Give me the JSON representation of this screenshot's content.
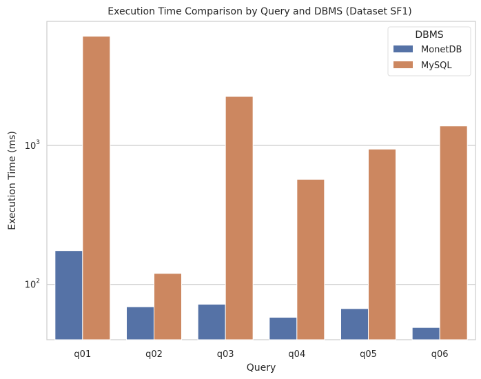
{
  "chart_data": {
    "type": "bar",
    "title": "Execution Time Comparison by Query and DBMS (Dataset SF1)",
    "xlabel": "Query",
    "ylabel": "Execution Time (ms)",
    "yscale": "log",
    "ylim": [
      40,
      7800
    ],
    "yticks": [
      {
        "value": 100,
        "base": "10",
        "exp": "2"
      },
      {
        "value": 1000,
        "base": "10",
        "exp": "3"
      }
    ],
    "grid": "horizontal",
    "categories": [
      "q01",
      "q02",
      "q03",
      "q04",
      "q05",
      "q06"
    ],
    "series": [
      {
        "name": "MonetDB",
        "color": "#5572a6",
        "values": [
          175,
          69,
          72,
          58,
          67,
          49
        ]
      },
      {
        "name": "MySQL",
        "color": "#cc8760",
        "values": [
          6100,
          120,
          2250,
          570,
          940,
          1380
        ]
      }
    ],
    "legend": {
      "title": "DBMS",
      "position": "top-right"
    }
  }
}
